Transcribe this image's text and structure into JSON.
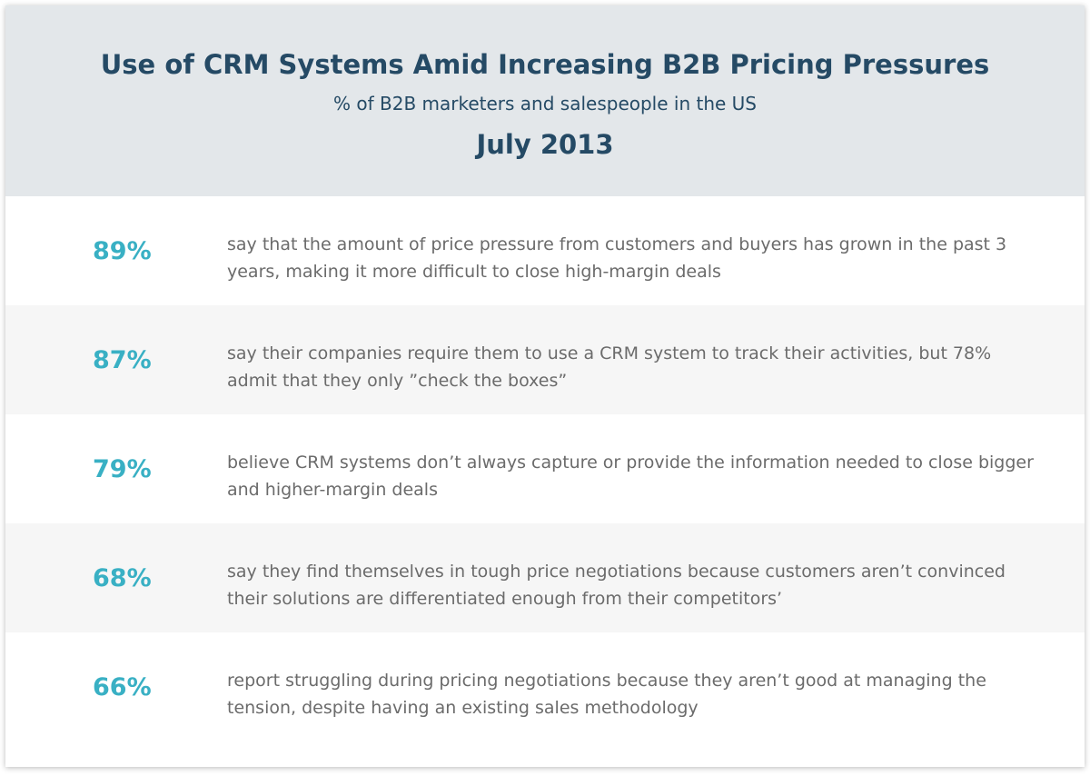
{
  "header": {
    "title": "Use of CRM Systems Amid Increasing B2B Pricing Pressures",
    "subtitle": "% of B2B marketers and salespeople in the US",
    "date": "July 2013"
  },
  "stats": [
    {
      "value": "89%",
      "text": "say that the amount of price pressure from customers and buyers has grown in the past 3 years, making it more difficult to close high-margin deals"
    },
    {
      "value": "87%",
      "text": "say their companies require them to use a CRM system to track their activities, but 78% admit that they only ”check the boxes”"
    },
    {
      "value": "79%",
      "text": "believe CRM systems don’t always capture or provide the information needed to close bigger and higher-margin deals"
    },
    {
      "value": "68%",
      "text": "say they find themselves in tough price negotiations because customers aren’t convinced their solutions are differentiated enough from their competitors’"
    },
    {
      "value": "66%",
      "text": "report struggling during pricing negotiations because they aren’t good at managing the tension, despite having an existing sales methodology"
    }
  ],
  "colors": {
    "header_bg": "#e3e7ea",
    "title": "#254a65",
    "accent": "#39b0c4",
    "body_text": "#6b6b6b",
    "alt_row_bg": "#f6f6f6"
  }
}
